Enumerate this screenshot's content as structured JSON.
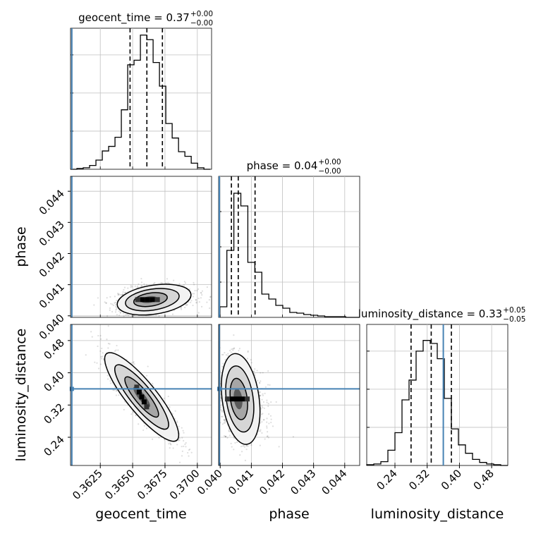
{
  "chart_data": {
    "type": "corner",
    "parameters": [
      {
        "name": "geocent_time",
        "title": {
          "base": "geocent_time = 0.37",
          "plus": "+0.00",
          "minus": "−0.00"
        },
        "range": [
          0.3602,
          0.3711
        ],
        "axis_label": "geocent_time",
        "ticks": [
          0.3625,
          0.365,
          0.3675,
          0.37
        ],
        "tick_labels": [
          "0.3625",
          "0.3650",
          "0.3675",
          "0.3700"
        ],
        "injection": 0.3603,
        "quantiles": [
          0.3648,
          0.3661,
          0.3673
        ],
        "hist_edges_range": [
          0.3602,
          0.371
        ],
        "hist_counts": [
          0,
          1,
          2,
          5,
          12,
          24,
          30,
          42,
          78,
          137,
          143,
          176,
          170,
          140,
          109,
          60,
          41,
          23,
          17,
          8,
          2,
          0
        ],
        "hist_ylim": [
          0,
          185
        ],
        "hist_ygrid": [
          50,
          100,
          150
        ]
      },
      {
        "name": "phase",
        "title": {
          "base": "phase = 0.04",
          "plus": "+0.00",
          "minus": "−0.00"
        },
        "range": [
          0.03995,
          0.04448
        ],
        "axis_label": "phase",
        "ticks": [
          0.04,
          0.041,
          0.042,
          0.043,
          0.044
        ],
        "tick_labels": [
          "0.040",
          "0.041",
          "0.042",
          "0.043",
          "0.044"
        ],
        "injection": 0.03995,
        "quantiles": [
          0.04036,
          0.04058,
          0.04112
        ],
        "hist_edges_range": [
          0.03999,
          0.04448
        ],
        "hist_counts": [
          15,
          95,
          176,
          158,
          78,
          64,
          33,
          26,
          17,
          13,
          7,
          6,
          4,
          3,
          2,
          1,
          1,
          1,
          0,
          0
        ],
        "hist_ylim": [
          0,
          200
        ],
        "hist_ygrid": [
          50,
          100,
          150
        ]
      },
      {
        "name": "luminosity_distance",
        "title": {
          "base": "luminosity_distance = 0.33",
          "plus": "+0.05",
          "minus": "−0.05"
        },
        "range": [
          0.17,
          0.52
        ],
        "axis_label": "luminosity_distance",
        "ticks": [
          0.24,
          0.32,
          0.4,
          0.48
        ],
        "tick_labels": [
          "0.24",
          "0.32",
          "0.40",
          "0.48"
        ],
        "injection": 0.36,
        "quantiles": [
          0.28,
          0.33,
          0.38
        ],
        "hist_edges_range": [
          0.17,
          0.52
        ],
        "hist_counts": [
          1,
          2,
          5,
          20,
          43,
          86,
          112,
          150,
          164,
          160,
          140,
          88,
          48,
          27,
          16,
          8,
          4,
          2,
          1,
          0
        ],
        "hist_ylim": [
          0,
          185
        ],
        "hist_ygrid": [
          50,
          100,
          150
        ]
      }
    ],
    "pairs": [
      {
        "x": "geocent_time",
        "y": "phase",
        "center": [
          0.36615,
          0.04052
        ],
        "sd": [
          0.0011,
          0.00022
        ],
        "rho": 0.25,
        "skew_x": 0.6,
        "injection": [
          0.3603,
          0.03995
        ]
      },
      {
        "x": "geocent_time",
        "y": "luminosity_distance",
        "center": [
          0.3657,
          0.34
        ],
        "sd": [
          0.0013,
          0.05
        ],
        "rho": -0.86,
        "skew_x": 0,
        "injection": [
          0.3603,
          0.36
        ]
      },
      {
        "x": "phase",
        "y": "luminosity_distance",
        "center": [
          0.04055,
          0.335
        ],
        "sd": [
          0.00028,
          0.048
        ],
        "rho": -0.25,
        "skew_x": 0.5,
        "injection": [
          0.03995,
          0.36
        ]
      }
    ],
    "colors": {
      "injection": "#4682b4",
      "grid": "#c0c0c0",
      "line": "#000000"
    },
    "grid": true
  }
}
